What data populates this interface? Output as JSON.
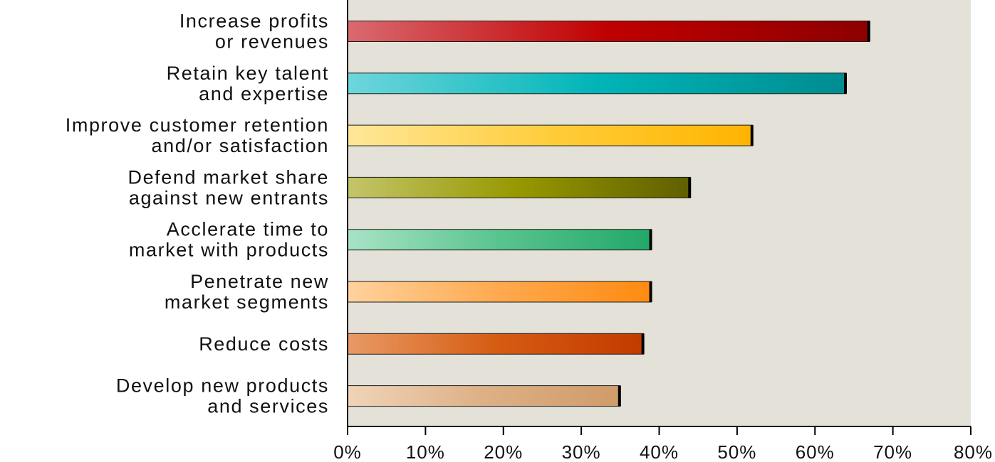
{
  "chart_data": {
    "type": "bar",
    "orientation": "horizontal",
    "categories": [
      [
        "Increase profits",
        "or revenues"
      ],
      [
        "Retain key talent",
        "and expertise"
      ],
      [
        "Improve customer retention",
        "and/or satisfaction"
      ],
      [
        "Defend market share",
        "against new entrants"
      ],
      [
        "Acclerate time to",
        "market with products"
      ],
      [
        "Penetrate new",
        "market segments"
      ],
      [
        "Reduce costs"
      ],
      [
        "Develop new products",
        "and services"
      ]
    ],
    "values": [
      67,
      64,
      52,
      44,
      39,
      39,
      38,
      35
    ],
    "colors": [
      [
        "#d96a70",
        "#c00000",
        "#8c0000"
      ],
      [
        "#6ed6dc",
        "#00b5b8",
        "#008c90"
      ],
      [
        "#ffe79a",
        "#ffcd3a",
        "#ffb400"
      ],
      [
        "#c3c56a",
        "#969800",
        "#5f5f00"
      ],
      [
        "#a8e3c6",
        "#59c48e",
        "#22a868"
      ],
      [
        "#ffd29e",
        "#ffa94f",
        "#ff8a10"
      ],
      [
        "#e89a66",
        "#d65c12",
        "#c23a00"
      ],
      [
        "#f0d4b8",
        "#ddb086",
        "#cf9c6a"
      ]
    ],
    "xlim": [
      0,
      80
    ],
    "xticks": [
      "0%",
      "10%",
      "20%",
      "30%",
      "40%",
      "50%",
      "60%",
      "70%",
      "80%"
    ],
    "plot_background": "#e4e2d8",
    "grid": false,
    "title": "",
    "xlabel": "",
    "ylabel": ""
  }
}
